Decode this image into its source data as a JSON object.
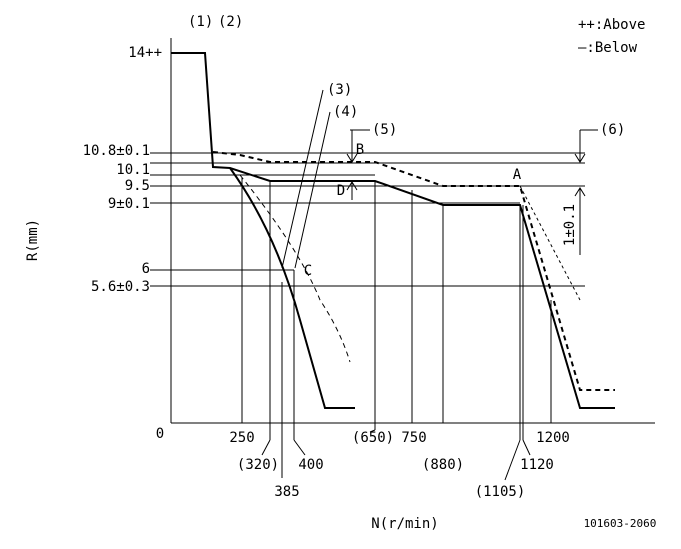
{
  "legend": {
    "above": "++:Above",
    "below": "—:Below"
  },
  "axis": {
    "y_title": "R(mm)",
    "x_title": "N(r/min)",
    "origin": "0"
  },
  "callouts": [
    "(1)",
    "(2)",
    "(3)",
    "(4)",
    "(5)",
    "(6)"
  ],
  "y_labels": [
    "14++",
    "10.8±0.1",
    "10.1",
    "9.5",
    "9±0.1",
    "6",
    "5.6±0.3"
  ],
  "points": [
    "A",
    "B",
    "C",
    "D"
  ],
  "tolerance": "1±0.1",
  "x_labels": [
    "250",
    "(320)",
    "385",
    "400",
    "(650)",
    "750",
    "(880)",
    "1120",
    "(1105)",
    "1200"
  ],
  "code": "101603-2060"
}
